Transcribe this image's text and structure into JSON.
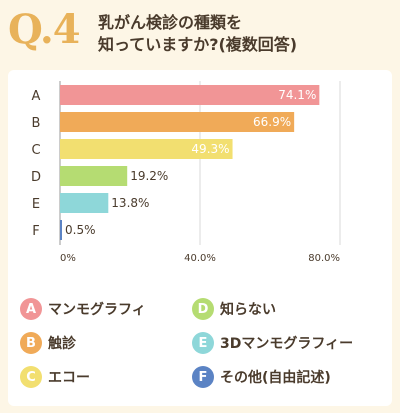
{
  "header": {
    "qnum": "Q.4",
    "line1": "乳がん検診の種類を",
    "line2": "知っていますか?(複数回答)"
  },
  "chart_data": {
    "type": "bar",
    "orientation": "horizontal",
    "categories": [
      "A",
      "B",
      "C",
      "D",
      "E",
      "F"
    ],
    "values": [
      74.1,
      66.9,
      49.3,
      19.2,
      13.8,
      0.5
    ],
    "value_labels": [
      "74.1%",
      "66.9%",
      "49.3%",
      "19.2%",
      "13.8%",
      "0.5%"
    ],
    "colors": [
      "#f19596",
      "#f0aa58",
      "#f2df70",
      "#b5dc72",
      "#8ed7d9",
      "#5b83c4"
    ],
    "xlim": [
      0,
      80
    ],
    "xticks": [
      "0%",
      "40.0%",
      "80.0%"
    ],
    "grid": true
  },
  "legend": [
    {
      "letter": "A",
      "label": "マンモグラフィ",
      "color": "#f19596"
    },
    {
      "letter": "B",
      "label": "触診",
      "color": "#f0aa58"
    },
    {
      "letter": "C",
      "label": "エコー",
      "color": "#f2df70"
    },
    {
      "letter": "D",
      "label": "知らない",
      "color": "#b5dc72"
    },
    {
      "letter": "E",
      "label": "3Dマンモグラフィー",
      "color": "#8ed7d9"
    },
    {
      "letter": "F",
      "label": "その他(自由記述)",
      "color": "#5b83c4"
    }
  ]
}
